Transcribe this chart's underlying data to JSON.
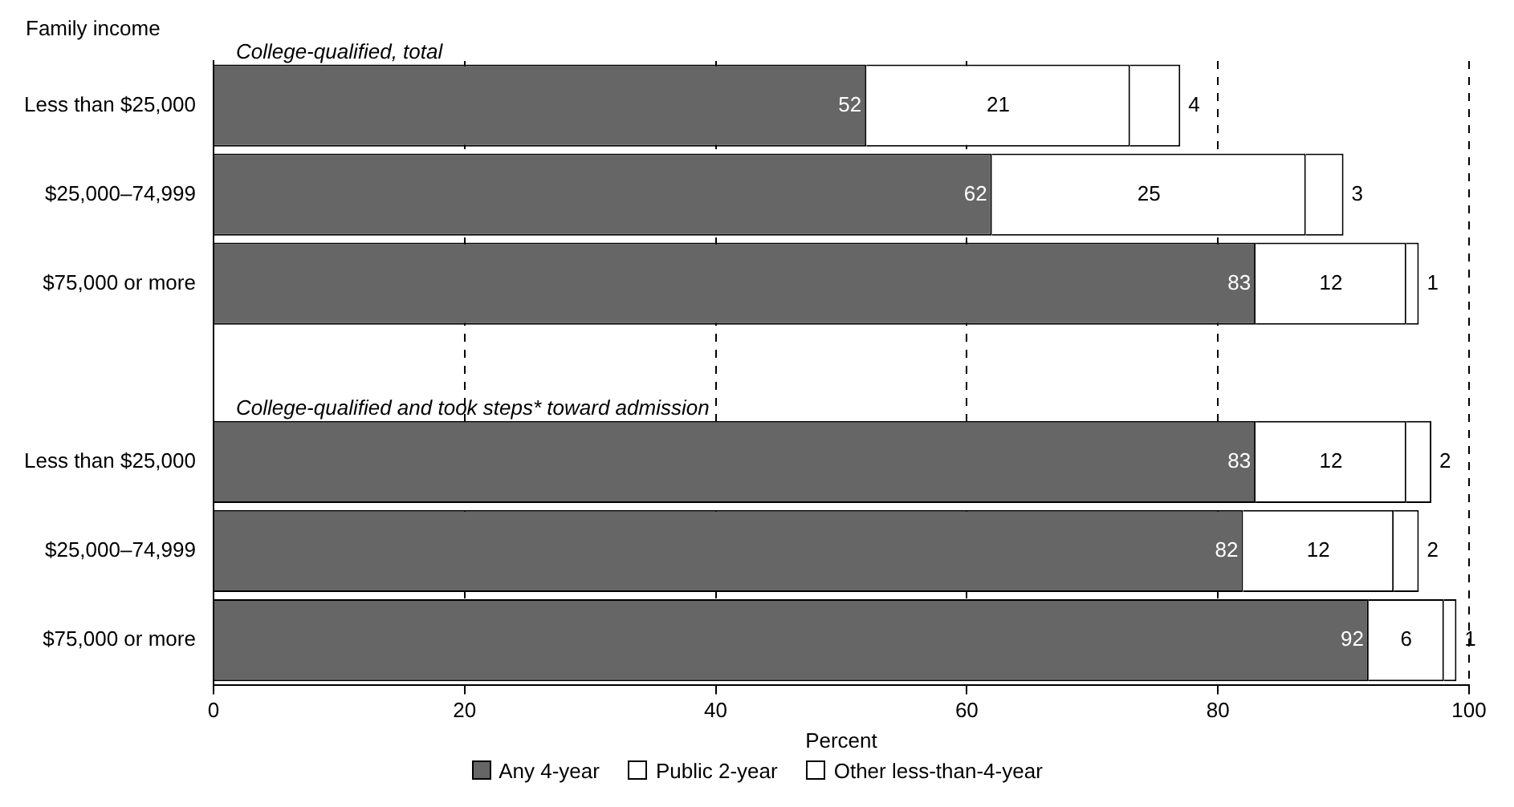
{
  "chart_data": {
    "type": "bar",
    "orientation": "horizontal",
    "stacked": true,
    "ylabel": "Family income",
    "xlabel": "Percent",
    "categories": [
      "Less than $25,000",
      "$25,000–74,999",
      "$75,000 or more",
      null,
      "Less than $25,000",
      "$25,000–74,999",
      "$75,000 or more"
    ],
    "series": [
      {
        "name": "Any 4-year",
        "color": "#666666",
        "values": [
          52,
          62,
          83,
          null,
          83,
          82,
          92
        ]
      },
      {
        "name": "Public 2-year",
        "color": "#ffffff",
        "values": [
          21,
          25,
          12,
          null,
          12,
          12,
          6
        ]
      },
      {
        "name": "Other less-than-4-year",
        "color": "#ffffff",
        "values": [
          4,
          3,
          1,
          null,
          2,
          2,
          1
        ]
      }
    ],
    "annotations": [
      "College-qualified, total",
      "College-qualified and took steps* toward admission"
    ],
    "xlim": [
      0,
      100
    ],
    "xticks": [
      0,
      20,
      40,
      60,
      80,
      100
    ],
    "grid": "x",
    "line_style": "dashed",
    "data_labels": true,
    "legend": "bottom"
  }
}
